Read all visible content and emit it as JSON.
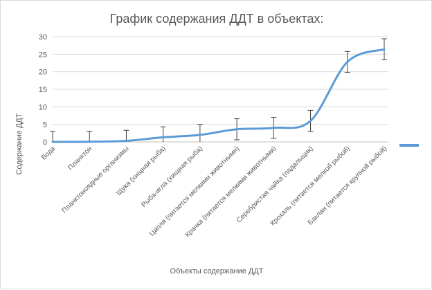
{
  "chart_data": {
    "type": "line",
    "title": "График содержания ДДТ в объектах:",
    "xlabel": "Объекты содержание ДДТ",
    "ylabel": "Содержание ДДТ",
    "ylim": [
      0,
      30
    ],
    "yticks": [
      0,
      5,
      10,
      15,
      20,
      25,
      30
    ],
    "grid": true,
    "legend": "right",
    "categories": [
      "Вода",
      "Планктон",
      "Планктоноядные организмы",
      "Щука (хищная рыба)",
      "Рыба-игла (хищная рыба)",
      "Цапля (питается мелкими животными)",
      "Крачка  (питается мелкими животными)",
      "Серебристая чайка (падальщик)",
      "Крохаль (питается мелкой рыбой)",
      "Баклан (питается крупной рыбой)"
    ],
    "series": [
      {
        "color": "#5b9bd5",
        "values": [
          0.0,
          0.04,
          0.3,
          1.3,
          2.0,
          3.6,
          4.0,
          6.0,
          22.8,
          26.4
        ],
        "error": [
          3,
          3,
          3,
          3,
          3,
          3,
          3,
          3,
          3,
          3
        ]
      }
    ]
  }
}
